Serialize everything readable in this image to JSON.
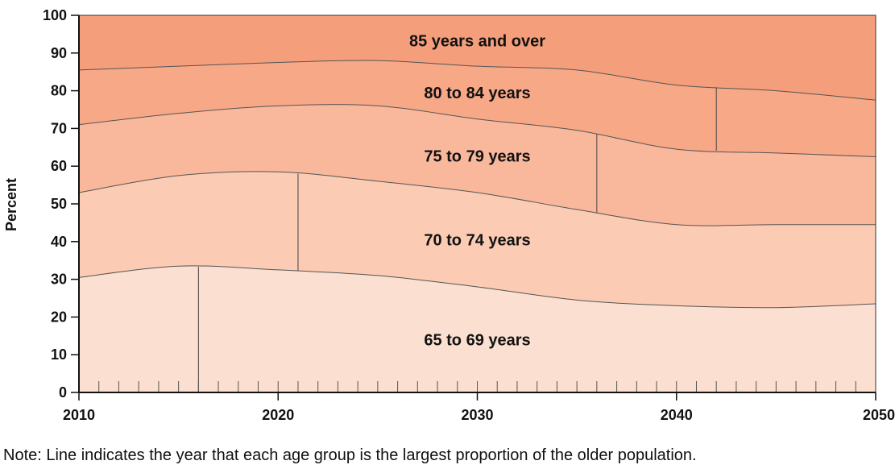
{
  "chart_data": {
    "type": "area",
    "stacked": true,
    "ylabel": "Percent",
    "ylim": [
      0,
      100
    ],
    "xlim": [
      2010,
      2050
    ],
    "y_ticks": [
      0,
      10,
      20,
      30,
      40,
      50,
      60,
      70,
      80,
      90,
      100
    ],
    "x_ticks": [
      2010,
      2020,
      2030,
      2040,
      2050
    ],
    "x": [
      2010,
      2015,
      2020,
      2025,
      2030,
      2035,
      2040,
      2045,
      2050
    ],
    "series": [
      {
        "name": "65 to 69 years",
        "color": "#fbdfd0",
        "values": [
          30.5,
          33.5,
          32.5,
          31.0,
          28.0,
          24.5,
          23.0,
          22.5,
          23.5
        ]
      },
      {
        "name": "70 to 74 years",
        "color": "#fbcbb4",
        "values": [
          22.5,
          24.0,
          26.0,
          25.0,
          25.0,
          24.0,
          21.5,
          22.0,
          21.0
        ]
      },
      {
        "name": "75 to 79 years",
        "color": "#f9b89c",
        "values": [
          18.0,
          16.5,
          17.5,
          20.0,
          19.5,
          21.0,
          20.0,
          19.0,
          18.0
        ]
      },
      {
        "name": "80 to 84 years",
        "color": "#f7a886",
        "values": [
          14.5,
          12.5,
          11.5,
          12.0,
          14.0,
          16.0,
          17.0,
          16.5,
          15.0
        ]
      },
      {
        "name": "85 years and over",
        "color": "#f59e7b",
        "values": [
          14.5,
          13.5,
          12.5,
          12.0,
          13.5,
          14.5,
          18.5,
          20.0,
          22.5
        ]
      }
    ],
    "peak_markers": [
      {
        "series": "65 to 69 years",
        "year": 2016
      },
      {
        "series": "70 to 74 years",
        "year": 2021
      },
      {
        "series": "75 to 79 years",
        "year": 2036
      },
      {
        "series": "80 to 84 years",
        "year": 2042
      }
    ],
    "grid": false
  },
  "note": "Note: Line indicates the year that each age group is the largest proportion of the older population."
}
